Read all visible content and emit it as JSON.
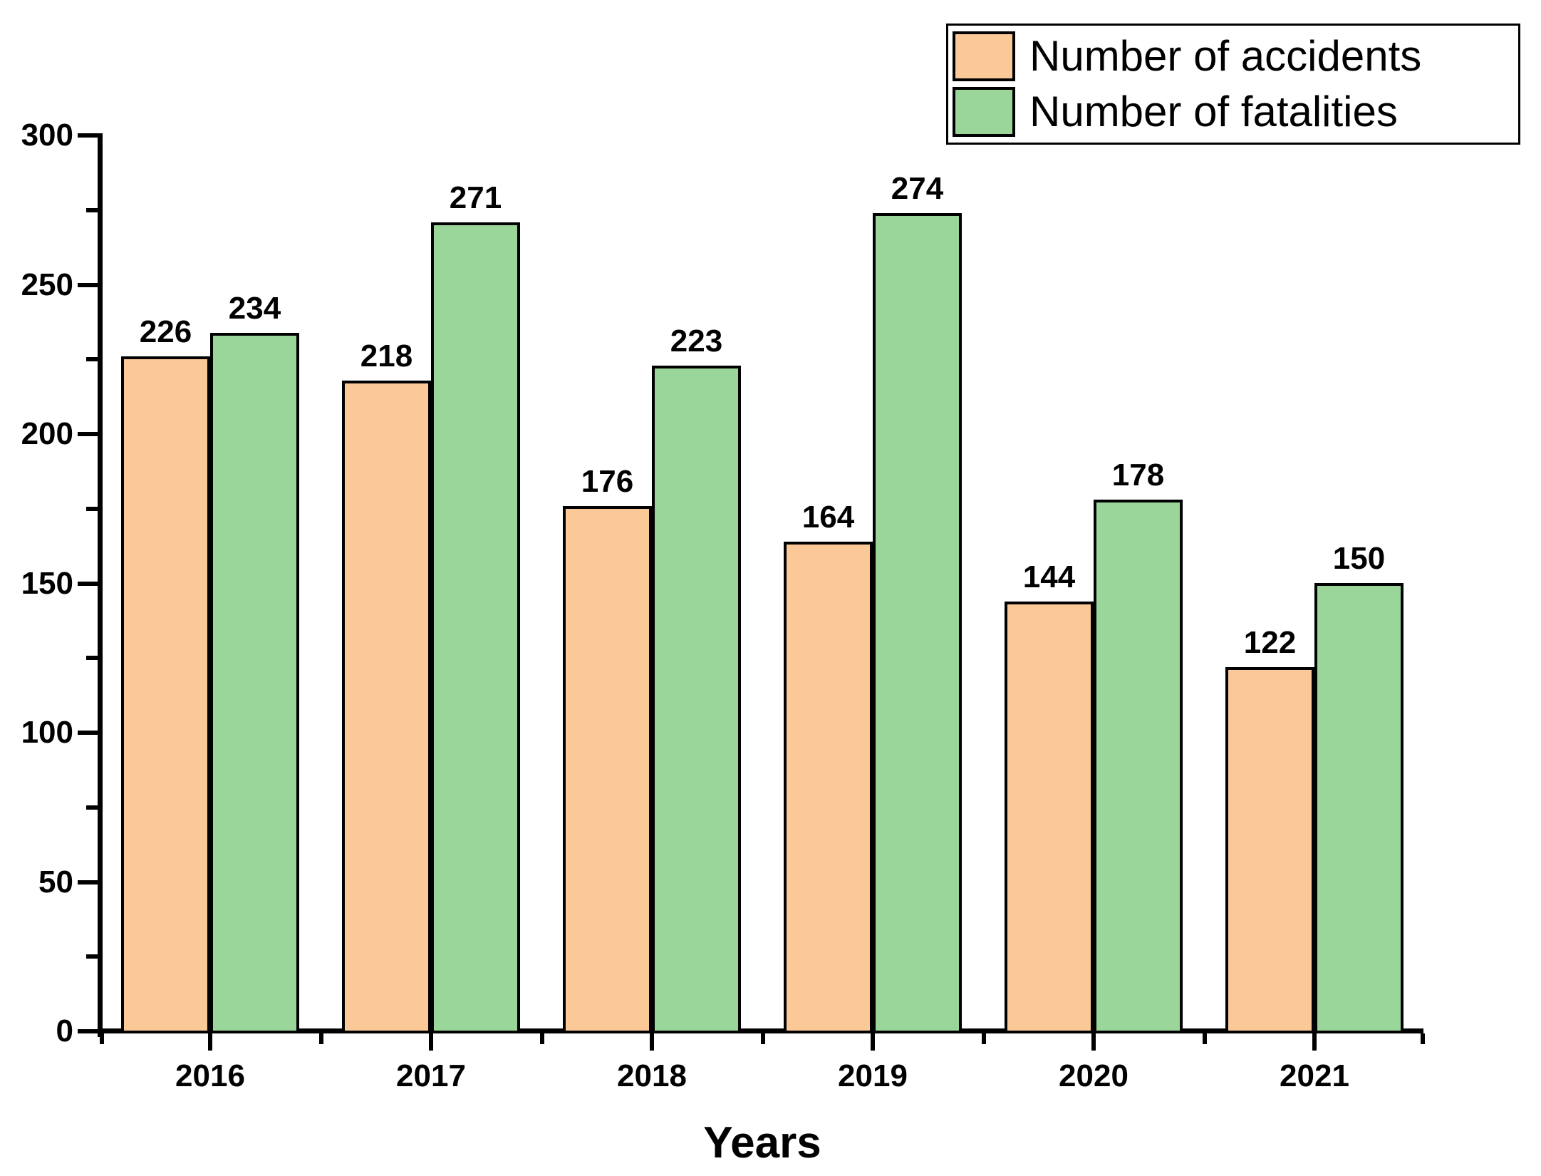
{
  "chart_data": {
    "type": "bar",
    "title": "",
    "xlabel": "Years",
    "ylabel": "",
    "categories": [
      "2016",
      "2017",
      "2018",
      "2019",
      "2020",
      "2021"
    ],
    "series": [
      {
        "name": "Number of accidents",
        "color": "#FBC897",
        "values": [
          226,
          218,
          176,
          164,
          144,
          122
        ]
      },
      {
        "name": "Number of fatalities",
        "color": "#9AD69A",
        "values": [
          234,
          271,
          223,
          274,
          178,
          150
        ]
      }
    ],
    "ylim": [
      0,
      300
    ],
    "y_major_step": 50,
    "y_minor_step": 25,
    "y_tick_labels": [
      "0",
      "50",
      "100",
      "150",
      "200",
      "250",
      "300"
    ],
    "grid": "off",
    "legend_position": "top-right",
    "bar_value_labels_shown": true,
    "axis_color": "#000000",
    "background_color": "#ffffff"
  }
}
